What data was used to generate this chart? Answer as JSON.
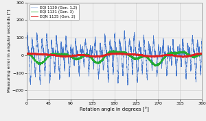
{
  "xlabel": "Rotation angle in degrees [°]",
  "ylabel": "Measuring error in angular seconds [\"]",
  "xlim": [
    0,
    360
  ],
  "ylim": [
    -250,
    300
  ],
  "yticks": [
    -200,
    -100,
    0,
    100,
    200,
    300
  ],
  "xticks": [
    0,
    45,
    90,
    135,
    180,
    225,
    270,
    315,
    360
  ],
  "legend": [
    {
      "label": "EQI 1130 (Gen. 1,2)",
      "color": "#4477cc"
    },
    {
      "label": "EQI 1131 (Gen. 3)",
      "color": "#22aa33"
    },
    {
      "label": "EQN 1135 (Gen. 2)",
      "color": "#dd2222"
    }
  ],
  "grid_color": "#cccccc",
  "background_color": "#f0f0f0",
  "seed": 7,
  "n_points": 7200
}
